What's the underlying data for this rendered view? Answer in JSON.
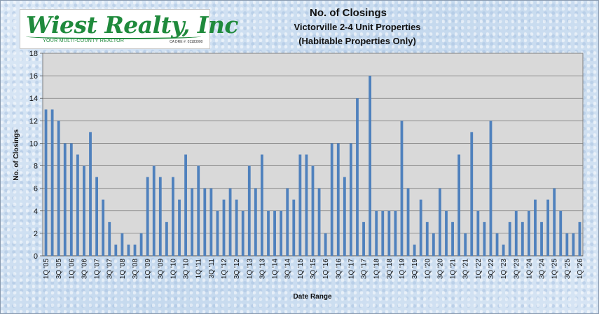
{
  "logo": {
    "name": "Wiest Realty, Inc",
    "tagline": "YOUR MULTI-COUNTY REALTOR",
    "license": "CA DRE #: 01183900"
  },
  "chart_data": {
    "type": "bar",
    "title": "No. of Closings",
    "subtitle": "Victorville 2-4 Unit Properties",
    "subtitle2": "(Habitable Properties Only)",
    "xlabel": "Date Range",
    "ylabel": "No. of Closings",
    "ylim": [
      0,
      18
    ],
    "yticks": [
      0,
      2,
      4,
      6,
      8,
      10,
      12,
      14,
      16,
      18
    ],
    "grid": true,
    "legend": "none",
    "bar_color": "#4f81bd",
    "plot_background": "#d9d9d9",
    "categories": [
      "1Q '05",
      "2Q '05",
      "3Q '05",
      "4Q '05",
      "1Q '06",
      "2Q '06",
      "3Q '06",
      "4Q '06",
      "1Q '07",
      "2Q '07",
      "3Q '07",
      "4Q '07",
      "1Q '08",
      "2Q '08",
      "3Q '08",
      "4Q '08",
      "1Q '09",
      "2Q '09",
      "3Q '09",
      "4Q '09",
      "1Q '10",
      "2Q '10",
      "3Q '10",
      "4Q '10",
      "1Q '11",
      "2Q '11",
      "3Q '11",
      "4Q '11",
      "1Q '12",
      "2Q '12",
      "3Q '12",
      "4Q '12",
      "1Q '13",
      "2Q '13",
      "3Q '13",
      "4Q '13",
      "1Q '14",
      "2Q '14",
      "3Q '14",
      "4Q '14",
      "1Q '15",
      "2Q '15",
      "3Q '15",
      "4Q '15",
      "1Q '16",
      "2Q '16",
      "3Q '16",
      "4Q '16",
      "1Q '17",
      "2Q '17",
      "3Q '17",
      "4Q '17",
      "1Q '18",
      "2Q '18",
      "3Q '18",
      "4Q '18",
      "1Q '19",
      "2Q '19",
      "3Q '19",
      "4Q '19",
      "1Q '20",
      "2Q '20",
      "3Q '20",
      "4Q '20",
      "1Q '21",
      "2Q '21",
      "3Q '21",
      "4Q '21",
      "1Q '22",
      "2Q '22",
      "3Q '22",
      "4Q '22",
      "1Q '23",
      "2Q '23",
      "3Q '23",
      "4Q '23",
      "1Q '24",
      "2Q '24",
      "3Q '24",
      "4Q '24",
      "1Q '25",
      "2Q '25",
      "3Q '25",
      "4Q '25",
      "1Q '26"
    ],
    "values": [
      13,
      13,
      12,
      10,
      10,
      9,
      8,
      11,
      7,
      5,
      3,
      1,
      2,
      1,
      1,
      2,
      7,
      8,
      7,
      3,
      7,
      5,
      9,
      6,
      8,
      6,
      6,
      4,
      5,
      6,
      5,
      4,
      8,
      6,
      9,
      4,
      4,
      4,
      6,
      5,
      9,
      9,
      8,
      6,
      2,
      10,
      10,
      7,
      10,
      14,
      3,
      16,
      4,
      4,
      4,
      4,
      12,
      6,
      1,
      5,
      3,
      2,
      6,
      4,
      3,
      9,
      2,
      11,
      4,
      3,
      12,
      2,
      1,
      3,
      4,
      3,
      4,
      5,
      3,
      5,
      6,
      4,
      2,
      2,
      3
    ],
    "labeled_every": 2
  }
}
